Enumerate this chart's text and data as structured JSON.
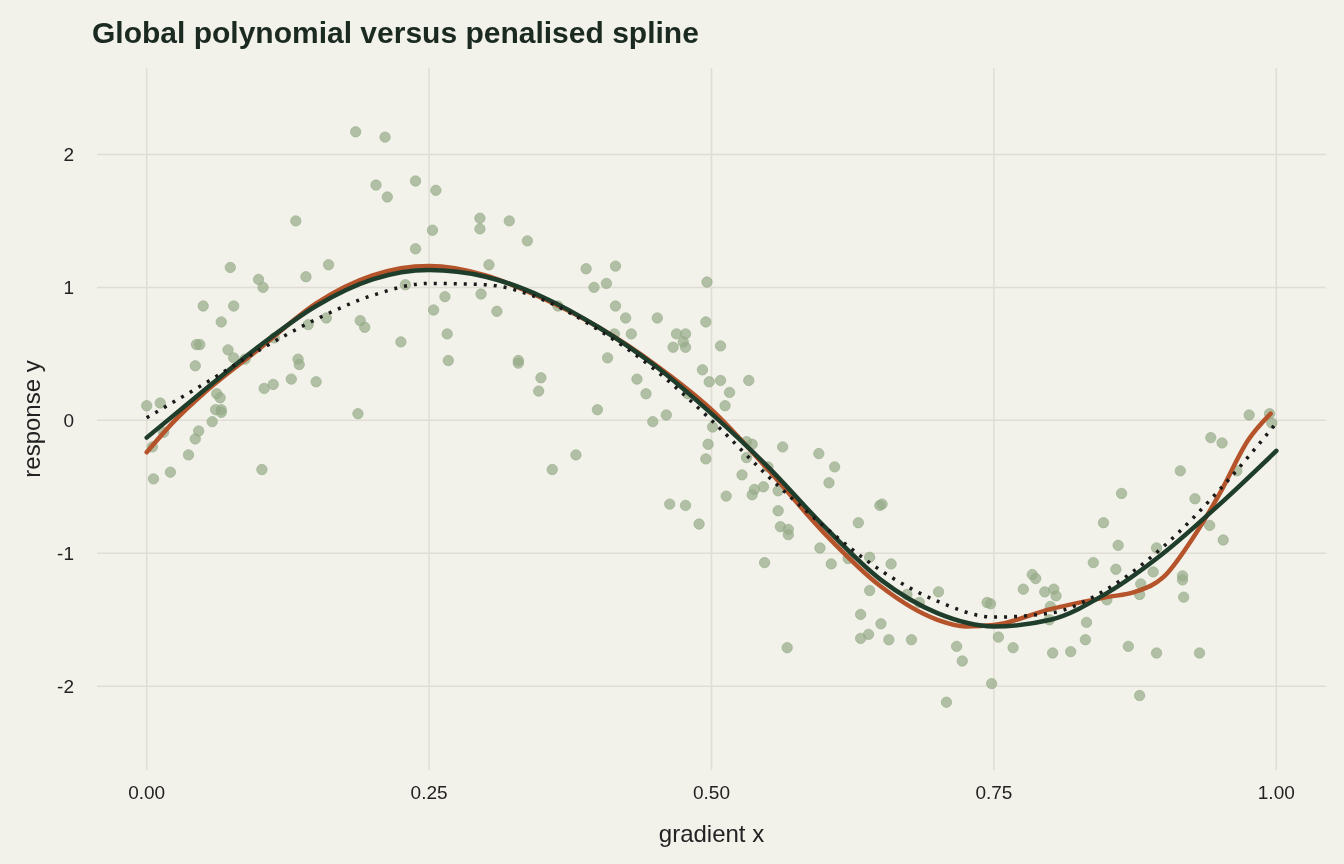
{
  "chart_data": {
    "type": "scatter",
    "title": "Global polynomial versus penalised spline",
    "xlabel": "gradient x",
    "ylabel": "response y",
    "xlim": [
      -0.044,
      1.044
    ],
    "ylim": [
      -2.63,
      2.65
    ],
    "xticks": [
      {
        "value": 0,
        "label": "0.00"
      },
      {
        "value": 0.25,
        "label": "0.25"
      },
      {
        "value": 0.5,
        "label": "0.50"
      },
      {
        "value": 0.75,
        "label": "0.75"
      },
      {
        "value": 1,
        "label": "1.00"
      }
    ],
    "yticks": [
      -2,
      -1,
      0,
      1,
      2
    ],
    "grid": true,
    "series": [
      {
        "marker": "circle",
        "color": "#95ab87",
        "x": [
          0.0,
          0.005,
          0.006,
          0.012,
          0.015,
          0.021,
          0.037,
          0.043,
          0.043,
          0.044,
          0.046,
          0.047,
          0.05,
          0.058,
          0.061,
          0.062,
          0.065,
          0.066,
          0.066,
          0.066,
          0.072,
          0.074,
          0.077,
          0.077,
          0.087,
          0.099,
          0.102,
          0.103,
          0.104,
          0.112,
          0.113,
          0.128,
          0.132,
          0.134,
          0.135,
          0.141,
          0.143,
          0.15,
          0.159,
          0.161,
          0.185,
          0.187,
          0.189,
          0.193,
          0.203,
          0.211,
          0.213,
          0.225,
          0.229,
          0.238,
          0.238,
          0.253,
          0.254,
          0.256,
          0.264,
          0.266,
          0.267,
          0.295,
          0.295,
          0.296,
          0.303,
          0.31,
          0.321,
          0.329,
          0.329,
          0.337,
          0.347,
          0.349,
          0.359,
          0.364,
          0.38,
          0.389,
          0.396,
          0.399,
          0.407,
          0.408,
          0.414,
          0.415,
          0.415,
          0.424,
          0.429,
          0.434,
          0.442,
          0.448,
          0.452,
          0.46,
          0.463,
          0.466,
          0.469,
          0.475,
          0.477,
          0.477,
          0.477,
          0.479,
          0.489,
          0.492,
          0.495,
          0.495,
          0.496,
          0.497,
          0.498,
          0.501,
          0.508,
          0.508,
          0.512,
          0.513,
          0.516,
          0.527,
          0.531,
          0.531,
          0.533,
          0.536,
          0.536,
          0.538,
          0.546,
          0.547,
          0.55,
          0.559,
          0.559,
          0.561,
          0.563,
          0.567,
          0.568,
          0.568,
          0.595,
          0.596,
          0.604,
          0.606,
          0.609,
          0.621,
          0.63,
          0.632,
          0.632,
          0.639,
          0.64,
          0.64,
          0.649,
          0.65,
          0.651,
          0.657,
          0.659,
          0.673,
          0.677,
          0.684,
          0.701,
          0.708,
          0.717,
          0.722,
          0.744,
          0.747,
          0.748,
          0.754,
          0.767,
          0.776,
          0.784,
          0.787,
          0.795,
          0.799,
          0.8,
          0.802,
          0.803,
          0.805,
          0.818,
          0.831,
          0.832,
          0.838,
          0.847,
          0.85,
          0.858,
          0.86,
          0.863,
          0.869,
          0.879,
          0.879,
          0.88,
          0.891,
          0.894,
          0.894,
          0.915,
          0.917,
          0.917,
          0.918,
          0.928,
          0.932,
          0.941,
          0.942,
          0.952,
          0.953,
          0.965,
          0.976,
          0.994,
          0.996
        ],
        "values": [
          0.11,
          -0.2,
          -0.44,
          0.13,
          -0.09,
          -0.39,
          -0.26,
          0.41,
          -0.14,
          0.57,
          -0.08,
          0.57,
          0.86,
          -0.01,
          0.08,
          0.2,
          0.17,
          0.08,
          0.06,
          0.74,
          0.53,
          1.15,
          0.86,
          0.47,
          0.46,
          1.06,
          -0.37,
          1.0,
          0.24,
          0.27,
          0.62,
          0.31,
          1.5,
          0.46,
          0.42,
          1.08,
          0.72,
          0.29,
          0.77,
          1.17,
          2.17,
          0.05,
          0.75,
          0.7,
          1.77,
          2.13,
          1.68,
          0.59,
          1.02,
          1.8,
          1.29,
          1.43,
          0.83,
          1.73,
          0.93,
          0.65,
          0.45,
          1.52,
          1.44,
          0.95,
          1.17,
          0.82,
          1.5,
          0.45,
          0.43,
          1.35,
          0.22,
          0.32,
          -0.37,
          0.86,
          -0.26,
          1.14,
          1.0,
          0.08,
          1.03,
          0.47,
          0.65,
          1.16,
          0.86,
          0.77,
          0.65,
          0.31,
          0.2,
          -0.01,
          0.77,
          0.04,
          -0.63,
          0.55,
          0.65,
          0.59,
          0.65,
          0.55,
          -0.64,
          0.2,
          -0.78,
          0.38,
          0.74,
          -0.29,
          1.04,
          -0.18,
          0.29,
          -0.05,
          0.56,
          0.3,
          0.11,
          -0.57,
          0.21,
          -0.41,
          -0.28,
          -0.16,
          0.3,
          -0.18,
          -0.56,
          -0.52,
          -0.5,
          -1.07,
          -0.35,
          -0.53,
          -0.68,
          -0.8,
          -0.2,
          -1.71,
          -0.82,
          -0.86,
          -0.25,
          -0.96,
          -0.47,
          -1.08,
          -0.35,
          -1.04,
          -0.77,
          -1.46,
          -1.64,
          -1.61,
          -1.03,
          -1.28,
          -0.64,
          -1.53,
          -0.63,
          -1.65,
          -1.08,
          -1.31,
          -1.65,
          -1.37,
          -1.29,
          -2.12,
          -1.7,
          -1.81,
          -1.37,
          -1.38,
          -1.98,
          -1.63,
          -1.71,
          -1.27,
          -1.16,
          -1.19,
          -1.29,
          -1.5,
          -1.4,
          -1.75,
          -1.27,
          -1.32,
          -1.74,
          -1.65,
          -1.52,
          -1.07,
          -0.77,
          -1.35,
          -1.12,
          -0.94,
          -0.55,
          -1.7,
          -2.07,
          -1.31,
          -1.23,
          -1.14,
          -0.96,
          -1.75,
          -0.38,
          -1.17,
          -1.2,
          -1.33,
          -0.59,
          -1.75,
          -0.79,
          -0.13,
          -0.17,
          -0.9,
          -0.38,
          0.04,
          0.05,
          -0.02
        ]
      },
      {
        "type": "line",
        "color": "#b5532a",
        "line_style": "solid",
        "x": [
          0,
          0.025,
          0.05,
          0.1,
          0.15,
          0.2,
          0.25,
          0.3,
          0.35,
          0.4,
          0.45,
          0.5,
          0.55,
          0.6,
          0.65,
          0.7,
          0.725,
          0.75,
          0.8,
          0.85,
          0.875,
          0.9,
          0.925,
          0.95,
          0.975,
          0.995
        ],
        "values": [
          -0.24,
          0.0,
          0.2,
          0.54,
          0.88,
          1.09,
          1.16,
          1.09,
          0.92,
          0.7,
          0.42,
          0.08,
          -0.37,
          -0.85,
          -1.25,
          -1.5,
          -1.55,
          -1.54,
          -1.42,
          -1.33,
          -1.29,
          -1.18,
          -0.9,
          -0.55,
          -0.15,
          0.05
        ]
      },
      {
        "type": "line",
        "color": "#1f3d2b",
        "line_style": "solid",
        "x": [
          0,
          0.05,
          0.1,
          0.15,
          0.2,
          0.25,
          0.3,
          0.35,
          0.4,
          0.45,
          0.5,
          0.55,
          0.6,
          0.65,
          0.7,
          0.75,
          0.8,
          0.85,
          0.9,
          0.95,
          1.0
        ],
        "values": [
          -0.13,
          0.22,
          0.56,
          0.86,
          1.06,
          1.13,
          1.08,
          0.93,
          0.7,
          0.41,
          0.05,
          -0.35,
          -0.8,
          -1.2,
          -1.45,
          -1.55,
          -1.5,
          -1.3,
          -1.0,
          -0.63,
          -0.23
        ]
      },
      {
        "type": "line",
        "color": "#1a1a1a",
        "line_style": "dotted",
        "x": [
          0,
          0.05,
          0.1,
          0.15,
          0.2,
          0.25,
          0.3,
          0.35,
          0.4,
          0.45,
          0.5,
          0.55,
          0.6,
          0.65,
          0.7,
          0.75,
          0.8,
          0.85,
          0.9,
          0.95,
          1.0
        ],
        "values": [
          0.02,
          0.27,
          0.53,
          0.76,
          0.94,
          1.03,
          1.02,
          0.91,
          0.68,
          0.38,
          0.0,
          -0.42,
          -0.8,
          -1.13,
          -1.36,
          -1.48,
          -1.45,
          -1.27,
          -0.95,
          -0.52,
          -0.02
        ]
      }
    ]
  }
}
